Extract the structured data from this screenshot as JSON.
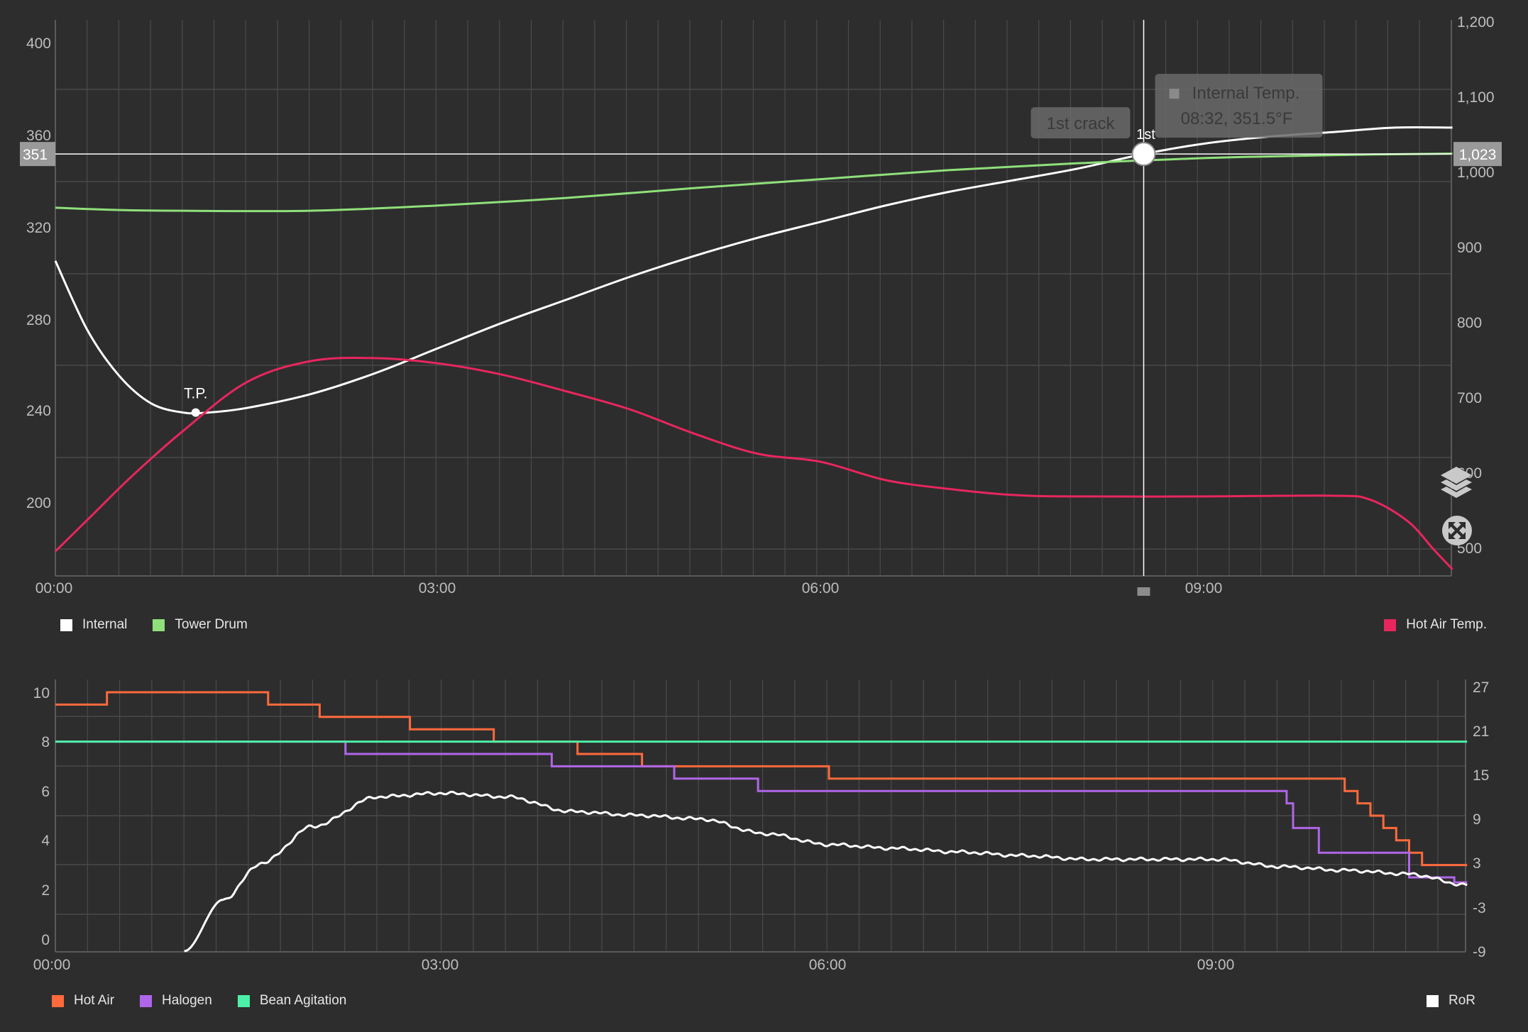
{
  "colors": {
    "background": "#2d2d2d",
    "grid": "#4a4a4a",
    "axis_text": "#bdbdbd",
    "internal": "#ffffff",
    "tower_drum": "#8fe07a",
    "hot_air_temp": "#e8265e",
    "hot_air": "#ff6a3c",
    "halogen": "#b066e8",
    "bean_agitation": "#4cf0a6",
    "ror": "#ffffff",
    "tooltip_bg": "#6a6a6a"
  },
  "top_chart": {
    "x_ticks": [
      "00:00",
      "03:00",
      "06:00",
      "09:00"
    ],
    "left_ticks": [
      "400",
      "360",
      "320",
      "280",
      "240",
      "200"
    ],
    "right_ticks": [
      "1,200",
      "1,100",
      "1,000",
      "900",
      "800",
      "700",
      "600",
      "500"
    ],
    "crosshair_left_label": "351",
    "crosshair_right_label": "1,023",
    "tp_label": "T.P.",
    "first_label": "1st",
    "event_tooltip": "1st crack",
    "tooltip_title": "Internal Temp.",
    "tooltip_value": "08:32, 351.5°F",
    "legend_left": [
      {
        "label": "Internal",
        "color": "#ffffff"
      },
      {
        "label": "Tower Drum",
        "color": "#8fe07a"
      }
    ],
    "legend_right": [
      {
        "label": "Hot Air Temp.",
        "color": "#e8265e"
      }
    ],
    "layers_icon": "layers-icon",
    "expand_icon": "expand-icon"
  },
  "bottom_chart": {
    "x_ticks": [
      "00:00",
      "03:00",
      "06:00",
      "09:00"
    ],
    "left_ticks": [
      "10",
      "8",
      "6",
      "4",
      "2",
      "0"
    ],
    "right_ticks": [
      "27",
      "21",
      "15",
      "9",
      "3",
      "-3",
      "-9"
    ],
    "legend_left": [
      {
        "label": "Hot Air",
        "color": "#ff6a3c"
      },
      {
        "label": "Halogen",
        "color": "#b066e8"
      },
      {
        "label": "Bean Agitation",
        "color": "#4cf0a6"
      }
    ],
    "legend_right": [
      {
        "label": "RoR",
        "color": "#ffffff"
      }
    ]
  },
  "chart_data": [
    {
      "type": "line",
      "x_unit": "minutes",
      "x_range": [
        0,
        11
      ],
      "left_axis": {
        "ylim": [
          170,
          420
        ],
        "unit": "°F"
      },
      "right_axis": {
        "ylim": [
          460,
          1200
        ],
        "unit": "°F"
      },
      "grid": true,
      "series": [
        {
          "name": "Internal",
          "axis": "left",
          "points": [
            [
              0,
              305
            ],
            [
              0.25,
              275
            ],
            [
              0.5,
              255
            ],
            [
              0.75,
              243
            ],
            [
              1.0,
              239
            ],
            [
              1.2,
              239
            ],
            [
              1.5,
              241
            ],
            [
              2.0,
              247
            ],
            [
              2.5,
              256
            ],
            [
              3.0,
              267
            ],
            [
              3.5,
              278
            ],
            [
              4.0,
              288
            ],
            [
              4.5,
              298
            ],
            [
              5.0,
              307
            ],
            [
              5.5,
              315
            ],
            [
              6.0,
              322
            ],
            [
              6.5,
              329
            ],
            [
              7.0,
              335
            ],
            [
              7.5,
              340
            ],
            [
              8.0,
              345
            ],
            [
              8.53,
              351.5
            ],
            [
              9.0,
              356
            ],
            [
              9.5,
              359
            ],
            [
              10.0,
              361
            ],
            [
              10.5,
              363
            ],
            [
              10.95,
              363
            ]
          ]
        },
        {
          "name": "Tower Drum",
          "axis": "right",
          "points": [
            [
              0,
              952
            ],
            [
              0.5,
              949
            ],
            [
              1.0,
              948
            ],
            [
              2.0,
              948
            ],
            [
              3.0,
              955
            ],
            [
              4.0,
              965
            ],
            [
              5.0,
              978
            ],
            [
              6.0,
              990
            ],
            [
              7.0,
              1002
            ],
            [
              8.0,
              1011
            ],
            [
              9.0,
              1018
            ],
            [
              10.0,
              1022
            ],
            [
              10.95,
              1024
            ]
          ]
        },
        {
          "name": "Hot Air Temp.",
          "axis": "right",
          "points": [
            [
              0,
              495
            ],
            [
              0.3,
              545
            ],
            [
              0.6,
              595
            ],
            [
              1.0,
              655
            ],
            [
              1.5,
              720
            ],
            [
              2.0,
              748
            ],
            [
              2.5,
              752
            ],
            [
              3.0,
              745
            ],
            [
              3.5,
              730
            ],
            [
              4.0,
              708
            ],
            [
              4.5,
              684
            ],
            [
              5.0,
              652
            ],
            [
              5.5,
              625
            ],
            [
              6.0,
              614
            ],
            [
              6.5,
              590
            ],
            [
              7.0,
              578
            ],
            [
              7.5,
              570
            ],
            [
              8.0,
              568
            ],
            [
              9.0,
              568
            ],
            [
              10.0,
              569
            ],
            [
              10.3,
              564
            ],
            [
              10.6,
              535
            ],
            [
              10.8,
              498
            ],
            [
              10.95,
              471
            ]
          ]
        }
      ],
      "annotations": [
        {
          "label": "T.P.",
          "x": 1.1,
          "y": 239
        },
        {
          "label": "1st",
          "x": 8.53,
          "y": 351.5
        }
      ]
    },
    {
      "type": "line",
      "x_unit": "minutes",
      "x_range": [
        0,
        11
      ],
      "left_axis": {
        "ylim": [
          -0.5,
          10.5
        ]
      },
      "right_axis": {
        "ylim": [
          -9,
          27
        ]
      },
      "grid": true,
      "series": [
        {
          "name": "Hot Air",
          "axis": "left",
          "step": true,
          "points": [
            [
              0,
              9.5
            ],
            [
              0.4,
              10
            ],
            [
              1.65,
              9.5
            ],
            [
              2.05,
              9
            ],
            [
              2.75,
              8.5
            ],
            [
              3.4,
              8
            ],
            [
              4.05,
              7.5
            ],
            [
              4.55,
              7
            ],
            [
              6.0,
              6.5
            ],
            [
              10.0,
              6
            ],
            [
              10.1,
              5.5
            ],
            [
              10.2,
              5
            ],
            [
              10.3,
              4.5
            ],
            [
              10.4,
              4
            ],
            [
              10.5,
              3.5
            ],
            [
              10.6,
              3
            ],
            [
              10.95,
              3
            ]
          ]
        },
        {
          "name": "Halogen",
          "axis": "left",
          "step": true,
          "points": [
            [
              0,
              8
            ],
            [
              2.25,
              7.5
            ],
            [
              3.85,
              7
            ],
            [
              4.8,
              6.5
            ],
            [
              5.45,
              6
            ],
            [
              9.55,
              5.5
            ],
            [
              9.6,
              4.5
            ],
            [
              9.8,
              3.5
            ],
            [
              10.5,
              2.5
            ],
            [
              10.85,
              2.3
            ],
            [
              10.95,
              2.3
            ]
          ]
        },
        {
          "name": "Bean Agitation",
          "axis": "left",
          "step": true,
          "points": [
            [
              0,
              8
            ],
            [
              10.95,
              8
            ]
          ]
        },
        {
          "name": "RoR",
          "axis": "right",
          "points": [
            [
              1.0,
              -9
            ],
            [
              1.3,
              -2
            ],
            [
              1.6,
              3
            ],
            [
              2.0,
              8
            ],
            [
              2.5,
              12
            ],
            [
              3.0,
              12.5
            ],
            [
              3.5,
              12
            ],
            [
              4.0,
              10
            ],
            [
              4.5,
              9.5
            ],
            [
              5.0,
              9
            ],
            [
              5.5,
              7
            ],
            [
              6.0,
              5.5
            ],
            [
              6.5,
              5
            ],
            [
              7.0,
              4.5
            ],
            [
              7.5,
              4
            ],
            [
              8.0,
              3.5
            ],
            [
              8.5,
              3.5
            ],
            [
              9.0,
              3.5
            ],
            [
              9.5,
              2.5
            ],
            [
              10.0,
              2
            ],
            [
              10.5,
              1.5
            ],
            [
              10.95,
              0
            ]
          ]
        }
      ]
    }
  ]
}
